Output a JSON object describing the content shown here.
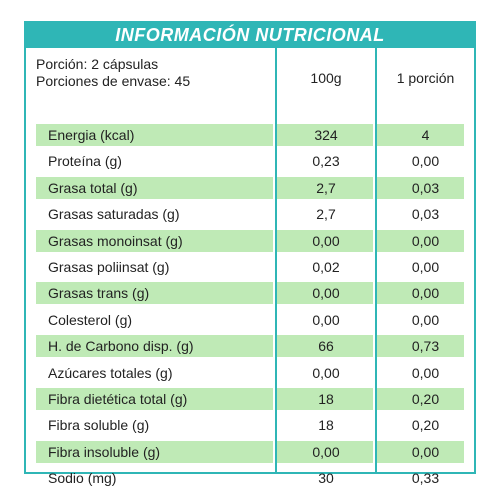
{
  "title": "INFORMACIÓN NUTRICIONAL",
  "portion": {
    "serving": "Porción: 2 cápsulas",
    "servings_per_container": "Porciones de envase: 45"
  },
  "columns": {
    "per_100g": "100g",
    "per_portion": "1 porción"
  },
  "colors": {
    "accent": "#2fb6b6",
    "row_highlight": "#bfeab6"
  },
  "rows": [
    {
      "name": "Energia (kcal)",
      "per_100g": "324",
      "per_portion": "4",
      "highlight": true
    },
    {
      "name": "Proteína (g)",
      "per_100g": "0,23",
      "per_portion": "0,00",
      "highlight": false
    },
    {
      "name": "Grasa total (g)",
      "per_100g": "2,7",
      "per_portion": "0,03",
      "highlight": true
    },
    {
      "name": "Grasas saturadas (g)",
      "per_100g": "2,7",
      "per_portion": "0,03",
      "highlight": false
    },
    {
      "name": "Grasas monoinsat (g)",
      "per_100g": "0,00",
      "per_portion": "0,00",
      "highlight": true
    },
    {
      "name": "Grasas poliinsat (g)",
      "per_100g": "0,02",
      "per_portion": "0,00",
      "highlight": false
    },
    {
      "name": "Grasas trans (g)",
      "per_100g": "0,00",
      "per_portion": "0,00",
      "highlight": true
    },
    {
      "name": "Colesterol (g)",
      "per_100g": "0,00",
      "per_portion": "0,00",
      "highlight": false
    },
    {
      "name": "H. de Carbono disp. (g)",
      "per_100g": "66",
      "per_portion": "0,73",
      "highlight": true
    },
    {
      "name": "Azúcares totales (g)",
      "per_100g": "0,00",
      "per_portion": "0,00",
      "highlight": false
    },
    {
      "name": "Fibra dietética total (g)",
      "per_100g": "18",
      "per_portion": "0,20",
      "highlight": true
    },
    {
      "name": "Fibra soluble (g)",
      "per_100g": "18",
      "per_portion": "0,20",
      "highlight": false
    },
    {
      "name": "Fibra insoluble (g)",
      "per_100g": "0,00",
      "per_portion": "0,00",
      "highlight": true
    },
    {
      "name": "Sodio (mg)",
      "per_100g": "30",
      "per_portion": "0,33",
      "highlight": false
    }
  ]
}
